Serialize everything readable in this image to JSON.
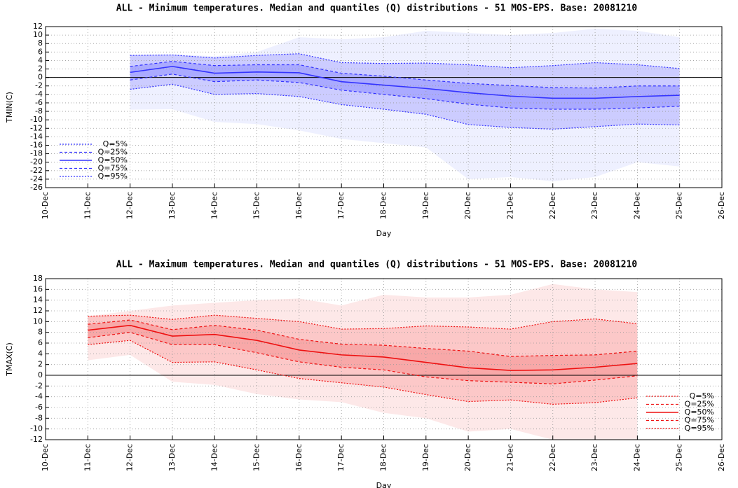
{
  "chart_data": [
    {
      "type": "line",
      "title": "ALL - Minimum temperatures. Median and quantiles (Q) distributions - 51  MOS-EPS. Base: 20081210",
      "xlabel": "Day",
      "ylabel": "TMIN(C)",
      "categories": [
        "10-Dec",
        "11-Dec",
        "12-Dec",
        "13-Dec",
        "14-Dec",
        "15-Dec",
        "16-Dec",
        "17-Dec",
        "18-Dec",
        "19-Dec",
        "20-Dec",
        "21-Dec",
        "22-Dec",
        "23-Dec",
        "24-Dec",
        "25-Dec",
        "26-Dec"
      ],
      "ylim": [
        -26,
        12
      ],
      "yticks": [
        -26,
        -24,
        -22,
        -20,
        -18,
        -16,
        -14,
        -12,
        -10,
        -8,
        -6,
        -4,
        -2,
        0,
        2,
        4,
        6,
        8,
        10,
        12
      ],
      "grid": true,
      "zero_line": true,
      "legend": "lower left",
      "envelope": {
        "color": "#eef0ff",
        "high": [
          null,
          null,
          5.4,
          5.5,
          5.0,
          6.0,
          9.5,
          9.0,
          9.5,
          11.0,
          10.5,
          10.0,
          10.5,
          11.5,
          11.0,
          9.5,
          null
        ],
        "low": [
          null,
          null,
          -7.6,
          -7.5,
          -10.5,
          -11,
          -12.5,
          -14.5,
          -15.5,
          -16.5,
          -24,
          -23.5,
          -24.5,
          -23.5,
          -20,
          -21,
          null
        ]
      },
      "band_colors": [
        "#ccccff",
        "#aaaaff"
      ],
      "series": [
        {
          "name": "Q=5%",
          "color": "#3333ff",
          "dash": "2,2",
          "values": [
            null,
            null,
            -2.8,
            -1.6,
            -4.0,
            -3.8,
            -4.5,
            -6.4,
            -7.5,
            -8.7,
            -11.1,
            -11.8,
            -12.2,
            -11.6,
            -11.0,
            -11.2,
            null
          ]
        },
        {
          "name": "Q=25%",
          "color": "#3333ff",
          "dash": "4,3",
          "values": [
            null,
            null,
            -0.6,
            0.8,
            -1.0,
            -0.6,
            -1.2,
            -3.0,
            -4.0,
            -5.0,
            -6.3,
            -7.2,
            -7.5,
            -7.5,
            -7.2,
            -6.8,
            null
          ]
        },
        {
          "name": "Q=50%",
          "color": "#3333ff",
          "dash": "none",
          "values": [
            null,
            null,
            1.2,
            2.6,
            1.0,
            1.3,
            1.1,
            -1.0,
            -1.8,
            -2.6,
            -3.6,
            -4.4,
            -4.9,
            -4.9,
            -4.5,
            -4.2,
            null
          ]
        },
        {
          "name": "Q=75%",
          "color": "#3333ff",
          "dash": "4,3",
          "values": [
            null,
            null,
            2.6,
            3.8,
            2.8,
            3.0,
            3.0,
            1.0,
            0.3,
            -0.6,
            -1.4,
            -1.9,
            -2.4,
            -2.5,
            -2.0,
            -2.0,
            null
          ]
        },
        {
          "name": "Q=95%",
          "color": "#3333ff",
          "dash": "2,2",
          "values": [
            null,
            null,
            5.2,
            5.3,
            4.6,
            5.2,
            5.6,
            3.5,
            3.3,
            3.4,
            3.0,
            2.3,
            2.8,
            3.5,
            3.0,
            2.1,
            null
          ]
        }
      ]
    },
    {
      "type": "line",
      "title": "ALL - Maximum temperatures. Median and quantiles (Q) distributions - 51 MOS-EPS. Base: 20081210",
      "xlabel": "Day",
      "ylabel": "TMAX(C)",
      "categories": [
        "10-Dec",
        "11-Dec",
        "12-Dec",
        "13-Dec",
        "14-Dec",
        "15-Dec",
        "16-Dec",
        "17-Dec",
        "18-Dec",
        "19-Dec",
        "20-Dec",
        "21-Dec",
        "22-Dec",
        "23-Dec",
        "24-Dec",
        "25-Dec",
        "26-Dec"
      ],
      "ylim": [
        -12,
        18
      ],
      "yticks": [
        -12,
        -10,
        -8,
        -6,
        -4,
        -2,
        0,
        2,
        4,
        6,
        8,
        10,
        12,
        14,
        16,
        18
      ],
      "grid": true,
      "zero_line": true,
      "legend": "lower right",
      "envelope": {
        "color": "#fde8e8",
        "high": [
          null,
          11,
          12,
          13,
          13.5,
          14,
          14.3,
          13,
          15,
          14.5,
          14.5,
          15,
          17,
          16,
          15.5,
          null,
          null
        ],
        "low": [
          null,
          2.8,
          3.8,
          -1.2,
          -1.8,
          -3.5,
          -4.5,
          -5,
          -7,
          -8,
          -10.5,
          -10,
          -12,
          -12,
          -12,
          null,
          null
        ]
      },
      "band_colors": [
        "#fcc8c8",
        "#f8a8a8"
      ],
      "series": [
        {
          "name": "Q=5%",
          "color": "#ee1111",
          "dash": "2,2",
          "values": [
            null,
            5.7,
            6.5,
            2.4,
            2.5,
            1.0,
            -0.6,
            -1.4,
            -2.2,
            -3.6,
            -4.9,
            -4.6,
            -5.4,
            -5.1,
            -4.2,
            null,
            null
          ]
        },
        {
          "name": "Q=25%",
          "color": "#ee1111",
          "dash": "4,3",
          "values": [
            null,
            7.0,
            8.0,
            5.7,
            5.7,
            4.2,
            2.5,
            1.5,
            1.0,
            -0.3,
            -1.0,
            -1.3,
            -1.6,
            -0.9,
            -0.1,
            null,
            null
          ]
        },
        {
          "name": "Q=50%",
          "color": "#ee1111",
          "dash": "none",
          "values": [
            null,
            8.4,
            9.3,
            7.3,
            7.6,
            6.5,
            4.7,
            3.8,
            3.4,
            2.4,
            1.4,
            0.9,
            1.0,
            1.5,
            2.2,
            null,
            null
          ]
        },
        {
          "name": "Q=75%",
          "color": "#ee1111",
          "dash": "4,3",
          "values": [
            null,
            9.5,
            10.3,
            8.5,
            9.3,
            8.4,
            6.7,
            5.8,
            5.6,
            5.0,
            4.5,
            3.5,
            3.7,
            3.8,
            4.5,
            null,
            null
          ]
        },
        {
          "name": "Q=95%",
          "color": "#ee1111",
          "dash": "2,2",
          "values": [
            null,
            11.0,
            11.2,
            10.4,
            11.2,
            10.6,
            10.0,
            8.6,
            8.7,
            9.2,
            9.0,
            8.6,
            10.0,
            10.5,
            9.6,
            null,
            null
          ]
        }
      ]
    }
  ]
}
